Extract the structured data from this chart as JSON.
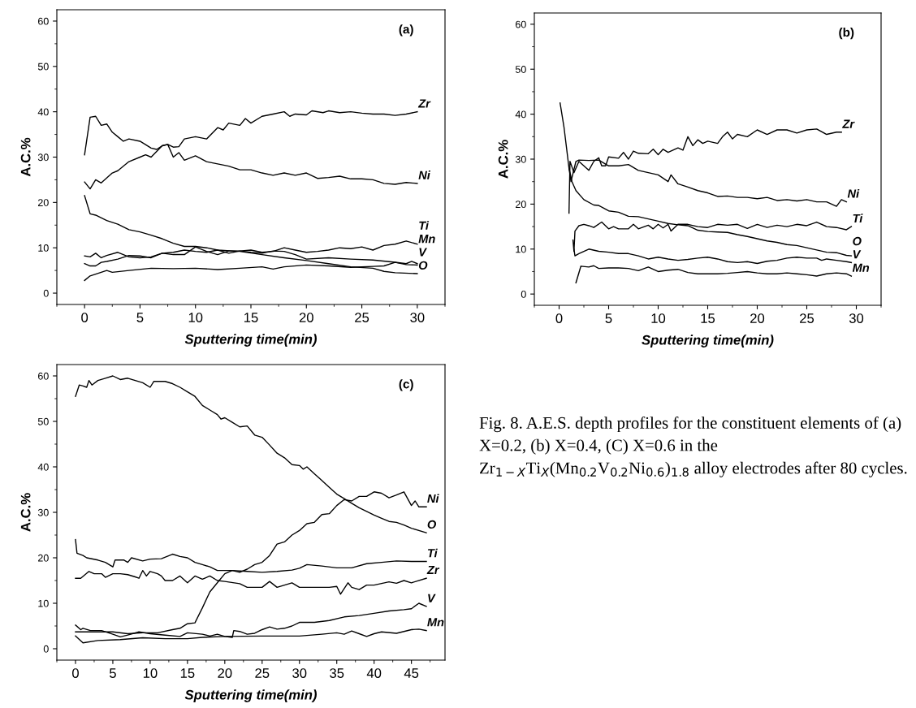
{
  "chart_data": [
    {
      "type": "line",
      "xlabel": "Sputtering time(min)",
      "ylabel": "A.C.%",
      "xlim": [
        -2.5,
        32.5
      ],
      "ylim": [
        -2.5,
        62.5
      ],
      "xticks": [
        0,
        5,
        10,
        15,
        20,
        25,
        30
      ],
      "yticks": [
        0,
        10,
        20,
        30,
        40,
        50,
        60
      ],
      "grid": false,
      "legend": false,
      "marker": "none",
      "line_style": "solid",
      "annotations": [
        "(a)"
      ],
      "series": [
        {
          "name": "Zr",
          "color": "#000000",
          "x": [
            0,
            0.5,
            1,
            1.5,
            2,
            2.5,
            3,
            3.5,
            4,
            5,
            6,
            6.5,
            7,
            7.5,
            8,
            8.5,
            9,
            10,
            11,
            12,
            12.5,
            13,
            14,
            14.5,
            15,
            16,
            17,
            18,
            18.5,
            19,
            20,
            20.5,
            21.5,
            22,
            23,
            24,
            25,
            26,
            27,
            28,
            29,
            30
          ],
          "values": [
            30.5,
            38.8,
            39,
            37,
            37.3,
            35.5,
            34.5,
            33.5,
            34,
            33.5,
            32,
            31.7,
            32.5,
            32.8,
            32.2,
            32.3,
            34,
            34.5,
            34,
            36.5,
            36,
            37.5,
            37,
            38.5,
            37.5,
            39,
            39.5,
            40,
            39,
            39.5,
            39.3,
            40.2,
            39.8,
            40.2,
            39.8,
            40,
            39.7,
            39.5,
            39.5,
            39.2,
            39.5,
            40
          ]
        },
        {
          "name": "Ni",
          "color": "#000000",
          "x": [
            0,
            0.5,
            1,
            1.5,
            2.5,
            3,
            4,
            5,
            5.5,
            6,
            7,
            7.5,
            8,
            8.5,
            9,
            10,
            11,
            12,
            13,
            14,
            15,
            16,
            17,
            18,
            19,
            20,
            21,
            22,
            23,
            24,
            25,
            26,
            27,
            28,
            29,
            30
          ],
          "values": [
            24.5,
            23,
            25,
            24.3,
            26.5,
            27,
            29,
            30,
            30.5,
            30,
            32.5,
            32.8,
            30,
            31,
            29.3,
            30.3,
            29,
            28.5,
            28,
            27.2,
            27.2,
            26.5,
            26,
            26.5,
            26,
            26.5,
            25.3,
            25.5,
            25.8,
            25.2,
            25.2,
            25,
            24.2,
            24,
            24.4,
            24.2
          ]
        },
        {
          "name": "Ti",
          "color": "#000000",
          "x": [
            0,
            0.5,
            1,
            1.5,
            2,
            3,
            4,
            5,
            6,
            7,
            8,
            9,
            10,
            11,
            12,
            13,
            14,
            15,
            16,
            17,
            18,
            19,
            20,
            21,
            22,
            23,
            24,
            25,
            26,
            27,
            28,
            29,
            30
          ],
          "values": [
            8.2,
            8,
            8.8,
            7.8,
            8.3,
            9,
            8,
            7.8,
            8,
            8.8,
            9,
            9.5,
            9.2,
            9,
            9.5,
            8.8,
            9.3,
            9.5,
            9,
            9.2,
            10,
            9.5,
            9,
            9.2,
            9.5,
            10,
            9.8,
            10.2,
            9.5,
            10.5,
            10.8,
            11.5,
            10.8
          ]
        },
        {
          "name": "V",
          "color": "#000000",
          "x": [
            0,
            0.5,
            1,
            1.5,
            2,
            3,
            4,
            5,
            6,
            7,
            8,
            9,
            10,
            11,
            12,
            13,
            14,
            15,
            16,
            17,
            18,
            19,
            20,
            22,
            24,
            26,
            28,
            29,
            30
          ],
          "values": [
            6.5,
            6,
            6,
            6.8,
            7,
            7.5,
            8.3,
            8.2,
            7.8,
            8.8,
            8.5,
            8.5,
            10.2,
            9.2,
            8.5,
            9.3,
            9.3,
            9,
            8.8,
            9.3,
            9.2,
            8.5,
            7.5,
            7.8,
            7.5,
            7.3,
            6.8,
            6.3,
            6.2
          ]
        },
        {
          "name": "Mn",
          "color": "#000000",
          "x": [
            0,
            0.5,
            1,
            2,
            2.5,
            4,
            6,
            8,
            10,
            12,
            14,
            16,
            17,
            18,
            20,
            22,
            24,
            26,
            27,
            28,
            29,
            29.5,
            30
          ],
          "values": [
            2.8,
            3.8,
            4.2,
            5,
            4.6,
            5,
            5.5,
            5.4,
            5.5,
            5.2,
            5.5,
            5.8,
            5.3,
            5.8,
            6.2,
            6,
            5.7,
            5.9,
            6,
            6.8,
            6.5,
            7,
            6.5
          ]
        },
        {
          "name": "O",
          "color": "#000000",
          "x": [
            0,
            0.5,
            1,
            2,
            3,
            4,
            5,
            6,
            7,
            8,
            9,
            10,
            11,
            12,
            14,
            16,
            18,
            20,
            22,
            24,
            26,
            27,
            28,
            30
          ],
          "values": [
            21.5,
            17.5,
            17.2,
            16,
            15.2,
            14,
            13.5,
            12.8,
            12,
            11,
            10.3,
            10.3,
            10,
            9.5,
            9.2,
            8.5,
            7.8,
            7.2,
            6.5,
            5.8,
            5.5,
            4.8,
            4.5,
            4.3
          ]
        }
      ]
    },
    {
      "type": "line",
      "xlabel": "Sputtering time(min)",
      "ylabel": "A.C.%",
      "xlim": [
        -2.5,
        32.5
      ],
      "ylim": [
        -2.5,
        62.5
      ],
      "xticks": [
        0,
        5,
        10,
        15,
        20,
        25,
        30
      ],
      "yticks": [
        0,
        10,
        20,
        30,
        40,
        50,
        60
      ],
      "grid": false,
      "legend": false,
      "marker": "none",
      "line_style": "solid",
      "annotations": [
        "(b)"
      ],
      "series": [
        {
          "name": "Zr",
          "color": "#000000",
          "x": [
            1,
            1.1,
            1.5,
            2,
            3,
            3.5,
            4,
            4.3,
            4.7,
            5,
            6,
            6.5,
            7,
            7.5,
            8,
            9,
            9.5,
            10,
            10.5,
            11,
            12,
            12.5,
            13,
            13.5,
            14,
            14.5,
            15,
            16,
            16.5,
            17,
            17.5,
            18,
            19,
            20,
            21,
            22,
            23,
            24,
            25,
            26,
            27,
            28,
            28.5
          ],
          "values": [
            18,
            29.5,
            27,
            29.5,
            27.5,
            29.5,
            30.3,
            28.5,
            28.5,
            30.5,
            30.2,
            31.5,
            30,
            31.8,
            31.3,
            31.2,
            32.2,
            31,
            32.2,
            31.5,
            32.5,
            32,
            35,
            33,
            34.3,
            33.5,
            34,
            33.5,
            35,
            36,
            34.5,
            35.5,
            35,
            36.5,
            35.5,
            36.5,
            36.5,
            35.8,
            36.5,
            36.7,
            35.5,
            36,
            36
          ]
        },
        {
          "name": "Ni",
          "color": "#000000",
          "x": [
            1,
            1.2,
            1.7,
            2,
            3,
            4,
            5,
            6,
            7,
            8,
            9,
            10,
            11,
            11.3,
            12,
            13,
            14,
            15,
            16,
            17,
            18,
            19,
            20,
            21,
            22,
            23,
            24,
            25,
            26,
            27,
            28,
            28.5,
            29
          ],
          "values": [
            28,
            25,
            29.5,
            29.8,
            29.7,
            29.8,
            28.5,
            28.5,
            28.8,
            27.5,
            27,
            26.5,
            25,
            26.5,
            24.5,
            23.8,
            23,
            22.5,
            21.7,
            21.8,
            21.5,
            21.5,
            21.2,
            21.5,
            20.8,
            21,
            20.7,
            21,
            20.5,
            20.5,
            19.5,
            21,
            20.5
          ]
        },
        {
          "name": "Ti",
          "color": "#000000",
          "x": [
            1.4,
            1.5,
            1.6,
            2,
            2.5,
            3,
            3.5,
            4.3,
            5,
            5.5,
            6,
            7,
            7.5,
            8,
            9,
            9.5,
            10,
            10.5,
            11,
            11.3,
            12,
            13,
            14,
            15,
            16,
            17,
            18,
            19,
            20,
            21,
            22,
            23,
            24,
            25,
            26,
            27,
            28,
            29,
            29.5
          ],
          "values": [
            12,
            9.5,
            14,
            15.2,
            15.5,
            15.2,
            14.8,
            16,
            14.5,
            15,
            14.5,
            14.5,
            15.5,
            14.5,
            15.3,
            14.5,
            15.5,
            14.7,
            15.5,
            14,
            15.5,
            15.5,
            15,
            14.8,
            15.5,
            15.3,
            15.5,
            14.6,
            15.5,
            14.8,
            15.3,
            15,
            15.5,
            15.2,
            16,
            15,
            14.8,
            14.3,
            15
          ]
        },
        {
          "name": "O",
          "color": "#000000",
          "x": [
            0.1,
            0.5,
            1,
            1.3,
            1.7,
            2.5,
            3.5,
            4,
            5,
            6,
            7,
            8,
            9,
            10,
            11,
            12,
            13,
            14,
            15,
            16,
            17,
            18,
            19,
            20,
            21,
            22,
            23,
            24,
            25,
            26,
            27,
            28,
            29,
            29.5
          ],
          "values": [
            42.5,
            37,
            28,
            25,
            23,
            21,
            19.8,
            19.7,
            18.5,
            18.2,
            17.3,
            17.2,
            16.7,
            16.2,
            15.7,
            15.4,
            15.2,
            14.2,
            13.9,
            13.8,
            13.7,
            13.2,
            12.8,
            12.3,
            11.8,
            11.5,
            11,
            10.8,
            10.3,
            9.8,
            9.3,
            9.2,
            8.6,
            8.5
          ]
        },
        {
          "name": "V",
          "color": "#000000",
          "x": [
            1.5,
            1.6,
            2,
            3,
            4,
            5,
            6,
            7,
            8,
            9,
            10,
            11,
            12,
            13,
            14,
            15,
            16,
            17,
            18,
            19,
            20,
            21,
            22,
            23,
            24,
            25,
            26,
            26.5,
            27,
            28,
            29,
            29.5
          ],
          "values": [
            10,
            8.5,
            9,
            10,
            9.5,
            9.3,
            9,
            9,
            8.5,
            7.8,
            8.2,
            7.8,
            7.5,
            7.7,
            8,
            8.2,
            7.8,
            7.2,
            7,
            7.2,
            6.8,
            7.3,
            7.5,
            8,
            8.2,
            8,
            8,
            7.5,
            7.8,
            7.5,
            7.2,
            7
          ]
        },
        {
          "name": "Mn",
          "color": "#000000",
          "x": [
            1.7,
            2.2,
            3,
            3.5,
            4,
            5,
            6,
            7,
            8,
            9,
            10,
            11,
            12,
            13,
            14,
            15,
            16,
            17,
            18,
            19,
            20,
            21,
            22,
            23,
            24,
            25,
            26,
            27,
            28,
            29,
            29.5
          ],
          "values": [
            2.5,
            6.2,
            6,
            6.3,
            5.7,
            5.8,
            5.8,
            5.7,
            5.2,
            6,
            5,
            5.3,
            5.5,
            4.8,
            4.5,
            4.5,
            4.5,
            4.6,
            4.8,
            5,
            4.7,
            4.5,
            4.5,
            4.7,
            4.5,
            4.3,
            4,
            4.5,
            4.7,
            4.5,
            4
          ]
        }
      ]
    },
    {
      "type": "line",
      "xlabel": "Sputtering time(min)",
      "ylabel": "A.C.%",
      "xlim": [
        -2.5,
        49.5
      ],
      "ylim": [
        -2.5,
        62.5
      ],
      "xticks": [
        0,
        5,
        10,
        15,
        20,
        25,
        30,
        35,
        40,
        45
      ],
      "yticks": [
        0,
        10,
        20,
        30,
        40,
        50,
        60
      ],
      "grid": false,
      "legend": false,
      "marker": "none",
      "line_style": "solid",
      "annotations": [
        "(c)"
      ],
      "series": [
        {
          "name": "Ni",
          "color": "#000000",
          "x": [
            0,
            2,
            5,
            7,
            9,
            11,
            13,
            14,
            15,
            16,
            17,
            18,
            19,
            20,
            21,
            22,
            23,
            24,
            25,
            26,
            27,
            28,
            29,
            30,
            31,
            32,
            33,
            34,
            35,
            36,
            37,
            38,
            39,
            40,
            41,
            42,
            43,
            44,
            45,
            45.5,
            46,
            47
          ],
          "values": [
            3.7,
            3.7,
            3.7,
            3.3,
            3.5,
            3.5,
            4.2,
            4.5,
            5.5,
            5.7,
            9,
            12.5,
            14.5,
            16.5,
            17.2,
            16.8,
            17.5,
            18.5,
            19,
            20.5,
            23,
            23.5,
            25,
            26,
            27.5,
            27.8,
            29.5,
            29.7,
            31.5,
            32.8,
            32.5,
            33.5,
            33.5,
            34.5,
            34.2,
            33.2,
            33.8,
            34.5,
            31.5,
            32.5,
            31.2,
            31.2
          ]
        },
        {
          "name": "O",
          "color": "#000000",
          "x": [
            0,
            0.5,
            1,
            1.5,
            1.8,
            2.2,
            3,
            4,
            5,
            6,
            7,
            8,
            9,
            10,
            10.5,
            12,
            13,
            14,
            15,
            16,
            17,
            18,
            19,
            19.5,
            20,
            21,
            22,
            23,
            24,
            25,
            26,
            27,
            28,
            29,
            30,
            30.5,
            31,
            32,
            33,
            34,
            35,
            36,
            37,
            38,
            39,
            40,
            41,
            42,
            43,
            44,
            45,
            47
          ],
          "values": [
            55.5,
            58,
            57.8,
            57.5,
            59,
            58,
            59,
            59.5,
            60,
            59.2,
            59.5,
            59,
            58.5,
            57.5,
            58.8,
            58.8,
            58.3,
            57.5,
            56.5,
            55.5,
            53.5,
            52.5,
            51.5,
            50.5,
            50.8,
            49.8,
            48.8,
            49,
            47,
            46.5,
            44.8,
            43,
            42,
            40.5,
            40.3,
            39.5,
            40,
            38.5,
            37,
            35.5,
            34,
            33,
            32,
            31,
            30.2,
            29.4,
            28.7,
            28,
            27.8,
            27.2,
            26.5,
            25.5
          ]
        },
        {
          "name": "Ti",
          "color": "#000000",
          "x": [
            0,
            0.2,
            1,
            1.5,
            3,
            4,
            5,
            5.3,
            6.5,
            7,
            7.5,
            9,
            10,
            11.5,
            13,
            14,
            15,
            16,
            17,
            18,
            19,
            21,
            23,
            25,
            27,
            29,
            30,
            31,
            33,
            35,
            37,
            39,
            41,
            43,
            45,
            47
          ],
          "values": [
            24,
            21,
            20.5,
            20,
            19.5,
            19,
            18,
            19.5,
            19.5,
            19,
            20,
            19.3,
            19.7,
            19.8,
            20.8,
            20.3,
            20,
            19,
            18.5,
            18,
            17.2,
            17.2,
            17,
            16.8,
            17,
            17.3,
            17.7,
            18.5,
            18.2,
            17.8,
            17.8,
            18.7,
            19,
            19.3,
            19.2,
            19.2
          ]
        },
        {
          "name": "Zr",
          "color": "#000000",
          "x": [
            0,
            0.7,
            1.8,
            2.5,
            3.5,
            4,
            5,
            6,
            7,
            8,
            8.5,
            9,
            9.5,
            10,
            11,
            11.5,
            12,
            13,
            14,
            15,
            16,
            17,
            18,
            19,
            20,
            22,
            23,
            25,
            26,
            27,
            29,
            30,
            32,
            34,
            35,
            35.5,
            36.5,
            37,
            38,
            39,
            40,
            42,
            43,
            44,
            45,
            47
          ],
          "values": [
            15.5,
            15.5,
            17,
            16.5,
            16.5,
            15.7,
            16.5,
            16.5,
            16.3,
            15.8,
            15.5,
            17.2,
            16,
            17,
            16.5,
            16,
            15,
            15,
            16,
            14.5,
            16,
            15.3,
            16,
            15,
            14.8,
            14.3,
            13.5,
            13.5,
            14.8,
            13.5,
            14.5,
            13.5,
            13.5,
            13.5,
            13.7,
            12,
            14.5,
            13.5,
            13,
            14,
            14,
            14.7,
            14.4,
            15,
            14.5,
            15.5
          ]
        },
        {
          "name": "V",
          "color": "#000000",
          "x": [
            0,
            0.7,
            1,
            2,
            3.5,
            5,
            6,
            7,
            8.5,
            10,
            12,
            14,
            15,
            17,
            18,
            19,
            20,
            21,
            21.2,
            22,
            23,
            24,
            25,
            26,
            27,
            28,
            29,
            30,
            32,
            34,
            36,
            38,
            40,
            42,
            44,
            45,
            46,
            47
          ],
          "values": [
            5.2,
            4.2,
            4.5,
            4,
            4,
            3.2,
            2.6,
            3,
            3.7,
            3.3,
            3,
            2.7,
            3.5,
            3.2,
            2.8,
            3.2,
            2.7,
            2.5,
            4,
            3.8,
            3.2,
            3.4,
            4.2,
            4.8,
            4.3,
            4.5,
            5,
            5.8,
            5.8,
            6.2,
            7,
            7.3,
            7.8,
            8.3,
            8.6,
            8.8,
            10,
            9.3
          ]
        },
        {
          "name": "Mn",
          "color": "#000000",
          "x": [
            0,
            1,
            3,
            6,
            9,
            12,
            15,
            17,
            20,
            25,
            30,
            33,
            35,
            36,
            37,
            38,
            39,
            40,
            41,
            43,
            45,
            46,
            47
          ],
          "values": [
            2.8,
            1.3,
            1.8,
            2,
            2.4,
            2.2,
            2.2,
            2.5,
            2.7,
            2.8,
            2.8,
            3.2,
            3.5,
            3.2,
            3.9,
            3.3,
            2.7,
            3.3,
            3.7,
            3.4,
            4.2,
            4.3,
            4
          ]
        }
      ]
    },
    {
      "type": "other",
      "annotations": [
        "Fig. 8. A.E.S. depth profiles for the constituent elements of (a) X=0.2, (b) X=0.4, (C) X=0.6 in the Zr$_{1−X}$Ti$_{X}$(Mn$_{0.2}$V$_{0.2}$Ni$_{0.6}$)$_{1.8}$ alloy electrodes after 80 cycles."
      ]
    }
  ]
}
